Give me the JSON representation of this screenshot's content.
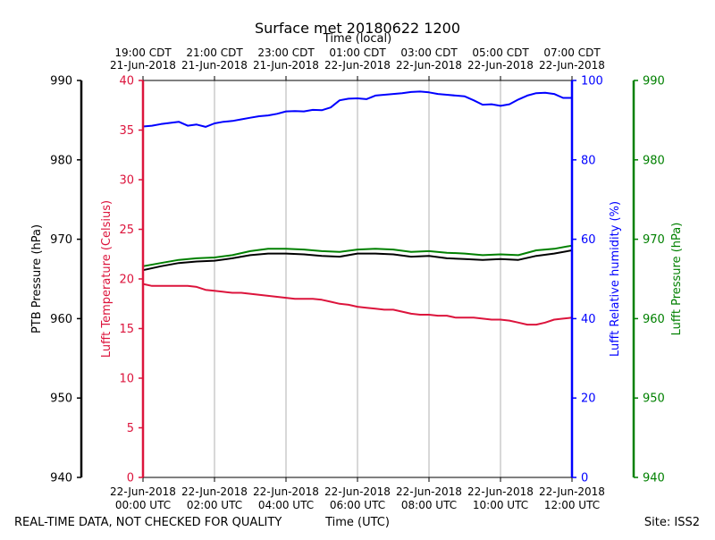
{
  "chart_data": {
    "type": "line",
    "title": "Surface met 20180622 1200",
    "top_axis_title": "Time (local)",
    "xlabel": "Time (UTC)",
    "footer_left": "REAL-TIME DATA, NOT CHECKED FOR QUALITY",
    "footer_right": "Site: ISS2",
    "x_range": [
      0,
      12
    ],
    "bottom_ticks": [
      {
        "x": 0,
        "line1": "22-Jun-2018",
        "line2": "00:00 UTC"
      },
      {
        "x": 2,
        "line1": "22-Jun-2018",
        "line2": "02:00 UTC"
      },
      {
        "x": 4,
        "line1": "22-Jun-2018",
        "line2": "04:00 UTC"
      },
      {
        "x": 6,
        "line1": "22-Jun-2018",
        "line2": "06:00 UTC"
      },
      {
        "x": 8,
        "line1": "22-Jun-2018",
        "line2": "08:00 UTC"
      },
      {
        "x": 10,
        "line1": "22-Jun-2018",
        "line2": "10:00 UTC"
      },
      {
        "x": 12,
        "line1": "22-Jun-2018",
        "line2": "12:00 UTC"
      }
    ],
    "top_ticks": [
      {
        "x": 0,
        "line1": "19:00 CDT",
        "line2": "21-Jun-2018"
      },
      {
        "x": 2,
        "line1": "21:00 CDT",
        "line2": "21-Jun-2018"
      },
      {
        "x": 4,
        "line1": "23:00 CDT",
        "line2": "21-Jun-2018"
      },
      {
        "x": 6,
        "line1": "01:00 CDT",
        "line2": "22-Jun-2018"
      },
      {
        "x": 8,
        "line1": "03:00 CDT",
        "line2": "22-Jun-2018"
      },
      {
        "x": 10,
        "line1": "05:00 CDT",
        "line2": "22-Jun-2018"
      },
      {
        "x": 12,
        "line1": "07:00 CDT",
        "line2": "22-Jun-2018"
      }
    ],
    "axes": {
      "ptb": {
        "label": "PTB Pressure (hPa)",
        "range": [
          940,
          990
        ],
        "ticks": [
          940,
          950,
          960,
          970,
          980,
          990
        ],
        "color": "#000000"
      },
      "temp": {
        "label": "Lufft Temperature (Celsius)",
        "range": [
          0,
          40
        ],
        "ticks": [
          0,
          5,
          10,
          15,
          20,
          25,
          30,
          35,
          40
        ],
        "color": "#dc143c"
      },
      "rh": {
        "label": "Lufft Relative humidity (%)",
        "range": [
          0,
          100
        ],
        "ticks": [
          0,
          20,
          40,
          60,
          80,
          100
        ],
        "color": "#0000ff"
      },
      "lufft_p": {
        "label": "Lufft Pressure (hPa)",
        "range": [
          940,
          990
        ],
        "ticks": [
          940,
          950,
          960,
          970,
          980,
          990
        ],
        "color": "#008000"
      }
    },
    "series": [
      {
        "name": "Lufft Relative humidity",
        "axis": "rh",
        "color": "#0000ff",
        "x": [
          0,
          0.25,
          0.5,
          0.75,
          1,
          1.25,
          1.5,
          1.75,
          2,
          2.25,
          2.5,
          2.75,
          3,
          3.25,
          3.5,
          3.75,
          4,
          4.25,
          4.5,
          4.75,
          5,
          5.25,
          5.5,
          5.75,
          6,
          6.25,
          6.5,
          6.75,
          7,
          7.25,
          7.5,
          7.75,
          8,
          8.25,
          8.5,
          8.75,
          9,
          9.25,
          9.5,
          9.75,
          10,
          10.25,
          10.5,
          10.75,
          11,
          11.25,
          11.5,
          11.75,
          12
        ],
        "values": [
          88.4,
          88.6,
          89.0,
          89.3,
          89.6,
          88.6,
          88.9,
          88.3,
          89.2,
          89.6,
          89.8,
          90.2,
          90.6,
          91.0,
          91.2,
          91.6,
          92.2,
          92.3,
          92.2,
          92.6,
          92.5,
          93.2,
          95.0,
          95.4,
          95.5,
          95.3,
          96.2,
          96.4,
          96.6,
          96.8,
          97.1,
          97.2,
          97.0,
          96.6,
          96.4,
          96.2,
          96.0,
          95.0,
          93.9,
          94.0,
          93.6,
          94.0,
          95.2,
          96.2,
          96.8,
          96.9,
          96.6,
          95.6,
          95.6
        ]
      },
      {
        "name": "Lufft Temperature",
        "axis": "temp",
        "color": "#dc143c",
        "x": [
          0,
          0.25,
          0.5,
          0.75,
          1,
          1.25,
          1.5,
          1.75,
          2,
          2.25,
          2.5,
          2.75,
          3,
          3.25,
          3.5,
          3.75,
          4,
          4.25,
          4.5,
          4.75,
          5,
          5.25,
          5.5,
          5.75,
          6,
          6.25,
          6.5,
          6.75,
          7,
          7.25,
          7.5,
          7.75,
          8,
          8.25,
          8.5,
          8.75,
          9,
          9.25,
          9.5,
          9.75,
          10,
          10.25,
          10.5,
          10.75,
          11,
          11.25,
          11.5,
          11.75,
          12
        ],
        "values": [
          19.5,
          19.3,
          19.3,
          19.3,
          19.3,
          19.3,
          19.2,
          18.9,
          18.8,
          18.7,
          18.6,
          18.6,
          18.5,
          18.4,
          18.3,
          18.2,
          18.1,
          18.0,
          18.0,
          18.0,
          17.9,
          17.7,
          17.5,
          17.4,
          17.2,
          17.1,
          17.0,
          16.9,
          16.9,
          16.7,
          16.5,
          16.4,
          16.4,
          16.3,
          16.3,
          16.1,
          16.1,
          16.1,
          16.0,
          15.9,
          15.9,
          15.8,
          15.6,
          15.4,
          15.4,
          15.6,
          15.9,
          16.0,
          16.1
        ]
      },
      {
        "name": "Lufft Pressure",
        "axis": "lufft_p",
        "color": "#008000",
        "x": [
          0,
          0.5,
          1,
          1.5,
          2,
          2.5,
          3,
          3.5,
          4,
          4.5,
          5,
          5.5,
          6,
          6.5,
          7,
          7.5,
          8,
          8.5,
          9,
          9.5,
          10,
          10.5,
          11,
          11.5,
          12
        ],
        "values": [
          966.6,
          967.0,
          967.4,
          967.6,
          967.7,
          968.0,
          968.5,
          968.8,
          968.8,
          968.7,
          968.5,
          968.4,
          968.7,
          968.8,
          968.7,
          968.4,
          968.5,
          968.3,
          968.2,
          968.0,
          968.1,
          968.0,
          968.6,
          968.8,
          969.2
        ]
      },
      {
        "name": "PTB Pressure",
        "axis": "ptb",
        "color": "#000000",
        "x": [
          0,
          0.5,
          1,
          1.5,
          2,
          2.5,
          3,
          3.5,
          4,
          4.5,
          5,
          5.5,
          6,
          6.5,
          7,
          7.5,
          8,
          8.5,
          9,
          9.5,
          10,
          10.5,
          11,
          11.5,
          12
        ],
        "values": [
          966.1,
          966.6,
          967.0,
          967.2,
          967.3,
          967.6,
          968.0,
          968.2,
          968.2,
          968.1,
          967.9,
          967.8,
          968.2,
          968.2,
          968.1,
          967.8,
          967.9,
          967.6,
          967.5,
          967.4,
          967.5,
          967.4,
          967.9,
          968.2,
          968.6
        ]
      }
    ]
  }
}
